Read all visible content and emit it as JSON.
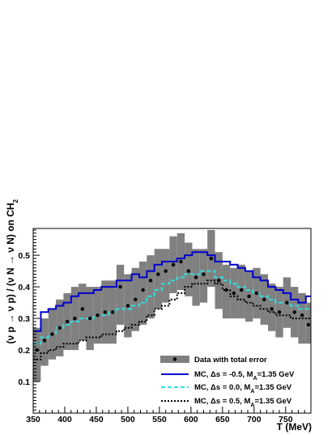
{
  "chart_data": {
    "type": "line",
    "title": "",
    "xlabel": "T (MeV)",
    "ylabel": "(ν p → ν p) / (ν N → ν N)  on CH",
    "ylabel_sub": "2",
    "xlim": [
      350,
      790
    ],
    "ylim": [
      0.0,
      0.585
    ],
    "x_ticks": [
      350,
      400,
      450,
      500,
      550,
      600,
      650,
      700,
      750
    ],
    "y_ticks": [
      0.1,
      0.2,
      0.3,
      0.4,
      0.5
    ],
    "x_tick_labels": [
      "350",
      "400",
      "450",
      "500",
      "550",
      "600",
      "650",
      "700",
      "750"
    ],
    "y_tick_labels": [
      "0.1",
      "0.2",
      "0.3",
      "0.4",
      "0.5"
    ],
    "grid": false,
    "legend_position": "bottom-right",
    "bin_edges": [
      350,
      362,
      374,
      386,
      398,
      410,
      422,
      434,
      446,
      458,
      470,
      482,
      494,
      506,
      518,
      530,
      542,
      554,
      566,
      578,
      590,
      602,
      614,
      626,
      638,
      650,
      662,
      674,
      686,
      698,
      710,
      722,
      734,
      746,
      758,
      770,
      782,
      790
    ],
    "data": {
      "name": "Data with total error",
      "x": [
        356,
        368,
        380,
        392,
        404,
        416,
        428,
        440,
        452,
        464,
        476,
        488,
        500,
        512,
        524,
        536,
        548,
        560,
        572,
        584,
        596,
        608,
        620,
        632,
        644,
        656,
        668,
        680,
        692,
        704,
        716,
        728,
        740,
        752,
        764,
        776,
        786
      ],
      "y": [
        0.2,
        0.23,
        0.25,
        0.27,
        0.29,
        0.3,
        0.33,
        0.3,
        0.31,
        0.32,
        0.32,
        0.4,
        0.34,
        0.36,
        0.39,
        0.42,
        0.44,
        0.45,
        0.47,
        0.48,
        0.45,
        0.43,
        0.44,
        0.49,
        0.42,
        0.39,
        0.38,
        0.39,
        0.37,
        0.38,
        0.36,
        0.33,
        0.32,
        0.35,
        0.32,
        0.31,
        0.28
      ],
      "err_low": [
        0.1,
        0.15,
        0.17,
        0.18,
        0.2,
        0.2,
        0.23,
        0.2,
        0.22,
        0.22,
        0.22,
        0.28,
        0.24,
        0.26,
        0.28,
        0.3,
        0.33,
        0.35,
        0.38,
        0.39,
        0.37,
        0.34,
        0.35,
        0.4,
        0.33,
        0.3,
        0.3,
        0.3,
        0.29,
        0.3,
        0.28,
        0.26,
        0.24,
        0.27,
        0.24,
        0.22,
        0.22
      ],
      "err_high": [
        0.27,
        0.3,
        0.33,
        0.36,
        0.38,
        0.4,
        0.41,
        0.4,
        0.4,
        0.42,
        0.42,
        0.47,
        0.44,
        0.46,
        0.48,
        0.5,
        0.52,
        0.52,
        0.56,
        0.57,
        0.54,
        0.52,
        0.52,
        0.58,
        0.51,
        0.47,
        0.46,
        0.47,
        0.45,
        0.46,
        0.44,
        0.41,
        0.4,
        0.43,
        0.4,
        0.38,
        0.35
      ]
    },
    "series": [
      {
        "name": "MC,  Δs = -0.5, M",
        "name_sub": "A",
        "name_tail": "=1.35 GeV",
        "color": "#0000cc",
        "style": "solid",
        "values": [
          0.26,
          0.32,
          0.33,
          0.34,
          0.35,
          0.37,
          0.38,
          0.38,
          0.39,
          0.4,
          0.4,
          0.42,
          0.42,
          0.44,
          0.43,
          0.45,
          0.47,
          0.48,
          0.48,
          0.49,
          0.5,
          0.51,
          0.51,
          0.5,
          0.48,
          0.48,
          0.47,
          0.46,
          0.45,
          0.43,
          0.42,
          0.4,
          0.39,
          0.38,
          0.36,
          0.35,
          0.37
        ]
      },
      {
        "name": "MC,  Δs =  0.0, M",
        "name_sub": "A",
        "name_tail": "=1.35 GeV",
        "color": "#33dddd",
        "style": "dashed",
        "values": [
          0.22,
          0.24,
          0.25,
          0.27,
          0.28,
          0.29,
          0.3,
          0.3,
          0.31,
          0.31,
          0.32,
          0.33,
          0.33,
          0.34,
          0.35,
          0.37,
          0.39,
          0.41,
          0.42,
          0.43,
          0.44,
          0.44,
          0.45,
          0.45,
          0.43,
          0.42,
          0.41,
          0.4,
          0.39,
          0.38,
          0.37,
          0.36,
          0.35,
          0.35,
          0.34,
          0.33,
          0.33
        ]
      },
      {
        "name": "MC,  Δs =  0.5, M",
        "name_sub": "A",
        "name_tail": "=1.35 GeV",
        "color": "#000000",
        "style": "dotted",
        "values": [
          0.17,
          0.19,
          0.2,
          0.21,
          0.22,
          0.22,
          0.23,
          0.24,
          0.24,
          0.25,
          0.25,
          0.26,
          0.27,
          0.28,
          0.29,
          0.31,
          0.33,
          0.34,
          0.36,
          0.38,
          0.4,
          0.41,
          0.41,
          0.42,
          0.41,
          0.39,
          0.37,
          0.36,
          0.35,
          0.34,
          0.33,
          0.32,
          0.31,
          0.31,
          0.3,
          0.3,
          0.3
        ]
      }
    ]
  }
}
